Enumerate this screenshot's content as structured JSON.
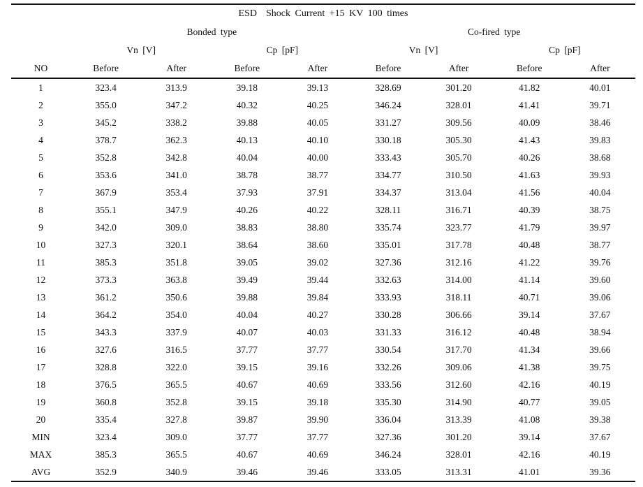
{
  "title": "ESD  Shock Current +15 KV 100 times",
  "colors": {
    "text": "#111111",
    "background": "#ffffff",
    "rule": "#111111"
  },
  "table": {
    "group_headers": {
      "bonded": "Bonded type",
      "cofired": "Co-fired type"
    },
    "unit_headers": {
      "vn": "Vn [V]",
      "cp": "Cp [pF]"
    },
    "column_headers": {
      "no": "NO",
      "before": "Before",
      "after": "After"
    },
    "rows": [
      {
        "no": "1",
        "values": [
          "323.4",
          "313.9",
          "39.18",
          "39.13",
          "328.69",
          "301.20",
          "41.82",
          "40.01"
        ]
      },
      {
        "no": "2",
        "values": [
          "355.0",
          "347.2",
          "40.32",
          "40.25",
          "346.24",
          "328.01",
          "41.41",
          "39.71"
        ]
      },
      {
        "no": "3",
        "values": [
          "345.2",
          "338.2",
          "39.88",
          "40.05",
          "331.27",
          "309.56",
          "40.09",
          "38.46"
        ]
      },
      {
        "no": "4",
        "values": [
          "378.7",
          "362.3",
          "40.13",
          "40.10",
          "330.18",
          "305.30",
          "41.43",
          "39.83"
        ]
      },
      {
        "no": "5",
        "values": [
          "352.8",
          "342.8",
          "40.04",
          "40.00",
          "333.43",
          "305.70",
          "40.26",
          "38.68"
        ]
      },
      {
        "no": "6",
        "values": [
          "353.6",
          "341.0",
          "38.78",
          "38.77",
          "334.77",
          "310.50",
          "41.63",
          "39.93"
        ]
      },
      {
        "no": "7",
        "values": [
          "367.9",
          "353.4",
          "37.93",
          "37.91",
          "334.37",
          "313.04",
          "41.56",
          "40.04"
        ]
      },
      {
        "no": "8",
        "values": [
          "355.1",
          "347.9",
          "40.26",
          "40.22",
          "328.11",
          "316.71",
          "40.39",
          "38.75"
        ]
      },
      {
        "no": "9",
        "values": [
          "342.0",
          "309.0",
          "38.83",
          "38.80",
          "335.74",
          "323.77",
          "41.79",
          "39.97"
        ]
      },
      {
        "no": "10",
        "values": [
          "327.3",
          "320.1",
          "38.64",
          "38.60",
          "335.01",
          "317.78",
          "40.48",
          "38.77"
        ]
      },
      {
        "no": "11",
        "values": [
          "385.3",
          "351.8",
          "39.05",
          "39.02",
          "327.36",
          "312.16",
          "41.22",
          "39.76"
        ]
      },
      {
        "no": "12",
        "values": [
          "373.3",
          "363.8",
          "39.49",
          "39.44",
          "332.63",
          "314.00",
          "41.14",
          "39.60"
        ]
      },
      {
        "no": "13",
        "values": [
          "361.2",
          "350.6",
          "39.88",
          "39.84",
          "333.93",
          "318.11",
          "40.71",
          "39.06"
        ]
      },
      {
        "no": "14",
        "values": [
          "364.2",
          "354.0",
          "40.04",
          "40.27",
          "330.28",
          "306.66",
          "39.14",
          "37.67"
        ]
      },
      {
        "no": "15",
        "values": [
          "343.3",
          "337.9",
          "40.07",
          "40.03",
          "331.33",
          "316.12",
          "40.48",
          "38.94"
        ]
      },
      {
        "no": "16",
        "values": [
          "327.6",
          "316.5",
          "37.77",
          "37.77",
          "330.54",
          "317.70",
          "41.34",
          "39.66"
        ]
      },
      {
        "no": "17",
        "values": [
          "328.8",
          "322.0",
          "39.15",
          "39.16",
          "332.26",
          "309.06",
          "41.38",
          "39.75"
        ]
      },
      {
        "no": "18",
        "values": [
          "376.5",
          "365.5",
          "40.67",
          "40.69",
          "333.56",
          "312.60",
          "42.16",
          "40.19"
        ]
      },
      {
        "no": "19",
        "values": [
          "360.8",
          "352.8",
          "39.15",
          "39.18",
          "335.30",
          "314.90",
          "40.77",
          "39.05"
        ]
      },
      {
        "no": "20",
        "values": [
          "335.4",
          "327.8",
          "39.87",
          "39.90",
          "336.04",
          "313.39",
          "41.08",
          "39.38"
        ]
      },
      {
        "no": "MIN",
        "values": [
          "323.4",
          "309.0",
          "37.77",
          "37.77",
          "327.36",
          "301.20",
          "39.14",
          "37.67"
        ]
      },
      {
        "no": "MAX",
        "values": [
          "385.3",
          "365.5",
          "40.67",
          "40.69",
          "346.24",
          "328.01",
          "42.16",
          "40.19"
        ]
      },
      {
        "no": "AVG",
        "values": [
          "352.9",
          "340.9",
          "39.46",
          "39.46",
          "333.05",
          "313.31",
          "41.01",
          "39.36"
        ]
      }
    ]
  }
}
